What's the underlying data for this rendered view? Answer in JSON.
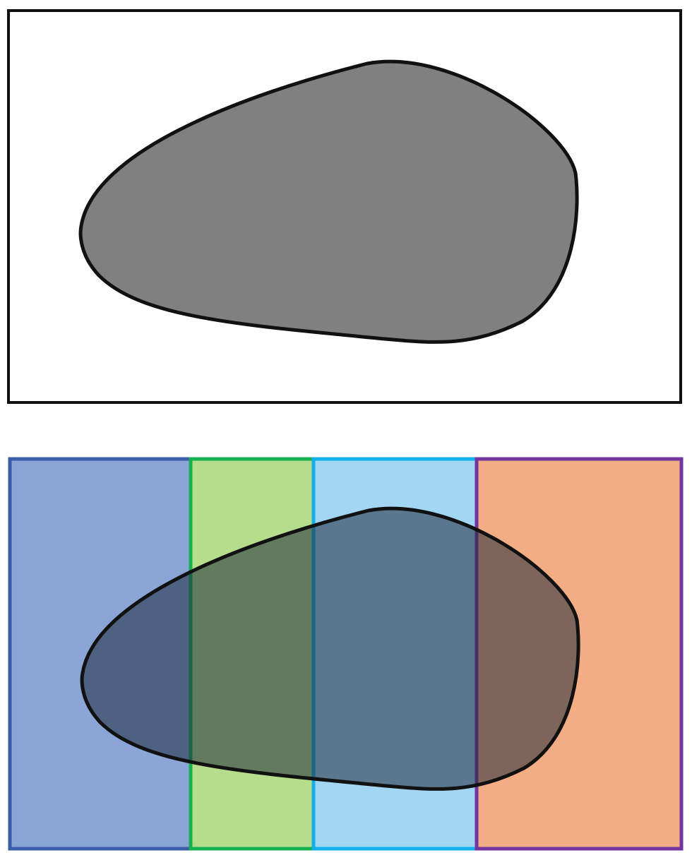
{
  "diagram": {
    "top_panel": {
      "frame_color": "#111111",
      "blob_fill": "#808080",
      "blob_stroke": "#111111"
    },
    "bottom_panel": {
      "strips": [
        {
          "name": "strip-1",
          "fill": "#8aa5d6",
          "border": "#3a5ea8"
        },
        {
          "name": "strip-2",
          "fill": "#b6dd8c",
          "border": "#16b050"
        },
        {
          "name": "strip-3",
          "fill": "#a2d6f3",
          "border": "#12b0ea"
        },
        {
          "name": "strip-4",
          "fill": "#f3ad84",
          "border": "#73359e"
        }
      ],
      "blob_fill": "#1e2a3a",
      "blob_opacity": 0.55,
      "blob_stroke": "#111111"
    }
  }
}
